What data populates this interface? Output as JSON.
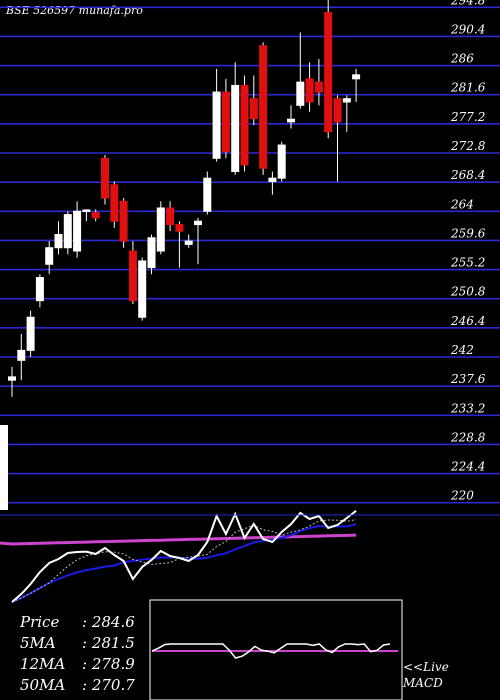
{
  "header": {
    "title": "BSE 526597 munafa.pro"
  },
  "colors": {
    "background": "#000000",
    "grid": "#2a2ad0",
    "up_candle": "#ffffff",
    "down_candle": "#e01010",
    "ma_short": "#ffffff",
    "ma_mid": "#1a1ae6",
    "ma_long": "#cc44cc",
    "macd_line": "#ffffff",
    "macd_signal": "#cc44cc"
  },
  "legend": {
    "price_label": "Price",
    "price_value": ": 284.6",
    "ma5_label": "5MA",
    "ma5_value": ": 281.5",
    "ma12_label": "12MA",
    "ma12_value": ": 278.9",
    "ma50_label": "50MA",
    "ma50_value": ": 270.7"
  },
  "macd_panel": {
    "line1": "<<Live",
    "line2": "MACD"
  },
  "chart_data": {
    "type": "candlestick",
    "title": "BSE 526597 munafa.pro",
    "y_ticks": [
      "294.8",
      "290.4",
      "286",
      "281.6",
      "277.2",
      "272.8",
      "268.4",
      "264",
      "259.6",
      "255.2",
      "250.8",
      "246.4",
      "242",
      "237.6",
      "233.2",
      "228.8",
      "224.4",
      "220"
    ],
    "y_tick_values": [
      294.8,
      290.4,
      286,
      281.6,
      277.2,
      272.8,
      268.4,
      264,
      259.6,
      255.2,
      250.8,
      246.4,
      242,
      237.6,
      233.2,
      228.8,
      224.4,
      220
    ],
    "ylim": [
      218.9,
      295.9
    ],
    "candles": [
      {
        "o": 238.5,
        "h": 240.5,
        "l": 236.0,
        "c": 239.0
      },
      {
        "o": 241.5,
        "h": 245.5,
        "l": 238.5,
        "c": 243.0
      },
      {
        "o": 243.0,
        "h": 249.0,
        "l": 242.0,
        "c": 248.0
      },
      {
        "o": 250.5,
        "h": 254.5,
        "l": 249.5,
        "c": 254.0
      },
      {
        "o": 256.0,
        "h": 259.5,
        "l": 254.5,
        "c": 258.5
      },
      {
        "o": 258.5,
        "h": 262.5,
        "l": 257.5,
        "c": 260.5
      },
      {
        "o": 258.5,
        "h": 264.0,
        "l": 257.5,
        "c": 263.5
      },
      {
        "o": 258.0,
        "h": 265.5,
        "l": 257.0,
        "c": 264.0
      },
      {
        "o": 264.0,
        "h": 264.3,
        "l": 262.5,
        "c": 264.2
      },
      {
        "o": 263.8,
        "h": 264.3,
        "l": 262.5,
        "c": 263.0
      },
      {
        "o": 272.0,
        "h": 272.5,
        "l": 265.0,
        "c": 266.0
      },
      {
        "o": 268.0,
        "h": 268.5,
        "l": 261.5,
        "c": 262.5
      },
      {
        "o": 265.5,
        "h": 266.0,
        "l": 258.5,
        "c": 259.5
      },
      {
        "o": 258.0,
        "h": 259.5,
        "l": 250.0,
        "c": 250.5
      },
      {
        "o": 248.0,
        "h": 257.0,
        "l": 247.5,
        "c": 256.5
      },
      {
        "o": 255.5,
        "h": 260.5,
        "l": 254.5,
        "c": 260.0
      },
      {
        "o": 258.0,
        "h": 265.5,
        "l": 257.5,
        "c": 264.5
      },
      {
        "o": 264.5,
        "h": 265.5,
        "l": 261.0,
        "c": 262.0
      },
      {
        "o": 262.0,
        "h": 262.5,
        "l": 255.5,
        "c": 261.0
      },
      {
        "o": 259.0,
        "h": 260.5,
        "l": 258.5,
        "c": 259.5
      },
      {
        "o": 262.0,
        "h": 263.0,
        "l": 256.0,
        "c": 262.5
      },
      {
        "o": 264.0,
        "h": 270.0,
        "l": 263.5,
        "c": 269.0
      },
      {
        "o": 272.0,
        "h": 285.5,
        "l": 271.5,
        "c": 282.0
      },
      {
        "o": 282.0,
        "h": 284.0,
        "l": 272.0,
        "c": 273.0
      },
      {
        "o": 270.0,
        "h": 286.5,
        "l": 269.5,
        "c": 283.0
      },
      {
        "o": 283.0,
        "h": 284.5,
        "l": 270.0,
        "c": 271.0
      },
      {
        "o": 281.0,
        "h": 284.5,
        "l": 277.0,
        "c": 278.0
      },
      {
        "o": 289.0,
        "h": 289.5,
        "l": 269.5,
        "c": 270.5
      },
      {
        "o": 268.5,
        "h": 270.0,
        "l": 266.5,
        "c": 269.0
      },
      {
        "o": 269.0,
        "h": 274.5,
        "l": 268.5,
        "c": 274.0
      },
      {
        "o": 277.5,
        "h": 280.0,
        "l": 276.5,
        "c": 277.9
      },
      {
        "o": 280.0,
        "h": 291.0,
        "l": 279.5,
        "c": 283.5
      },
      {
        "o": 284.0,
        "h": 286.5,
        "l": 279.0,
        "c": 280.5
      },
      {
        "o": 283.5,
        "h": 287.0,
        "l": 280.0,
        "c": 282.0
      },
      {
        "o": 294.0,
        "h": 296.0,
        "l": 275.0,
        "c": 276.0
      },
      {
        "o": 281.0,
        "h": 281.5,
        "l": 268.5,
        "c": 277.5
      },
      {
        "o": 280.5,
        "h": 281.5,
        "l": 276.0,
        "c": 281.0
      },
      {
        "o": 284.0,
        "h": 285.5,
        "l": 280.5,
        "c": 284.6
      }
    ]
  }
}
